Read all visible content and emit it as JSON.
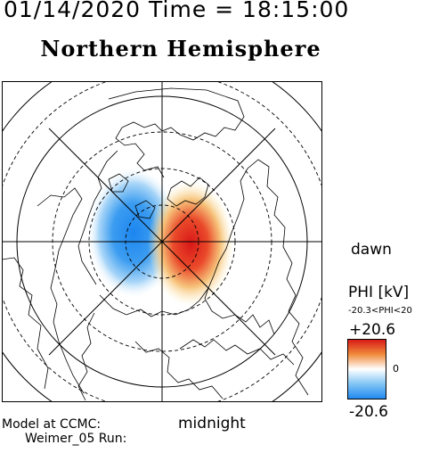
{
  "header": {
    "datetime": "01/14/2020 Time = 18:15:00",
    "hemisphere": "Northern Hemisphere"
  },
  "map": {
    "dawn_label": "dawn",
    "midnight_label": "midnight",
    "projection": "polar",
    "dashed_circles": 3,
    "solid_circles": 2,
    "potential_cells": [
      {
        "sign": "negative",
        "side": "dusk",
        "color": "#3b8fe8"
      },
      {
        "sign": "positive",
        "side": "dawn",
        "color": "#e02020"
      }
    ]
  },
  "colorbar": {
    "title": "PHI [kV]",
    "range_text": "-20.3<PHI<20",
    "max_label": "+20.6",
    "min_label": "-20.6",
    "zero_label": "0",
    "colors": [
      "#e02020",
      "#ffffff",
      "#1e90ff"
    ]
  },
  "footer": {
    "model_line1": "Model at CCMC:",
    "model_line2": "Weimer_05 Run:"
  }
}
